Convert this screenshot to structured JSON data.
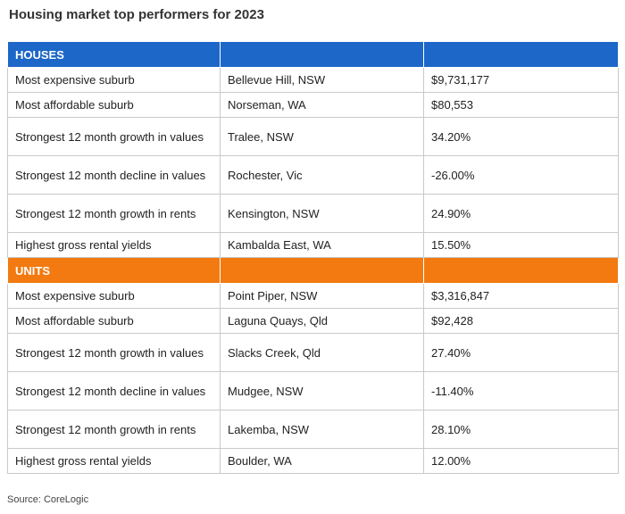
{
  "title": "Housing market top performers for 2023",
  "colors": {
    "houses_header": "#1c67c8",
    "units_header": "#f27a10"
  },
  "houses": {
    "label": "HOUSES",
    "rows": [
      {
        "metric": "Most expensive suburb",
        "suburb": "Bellevue Hill, NSW",
        "value": "$9,731,177"
      },
      {
        "metric": "Most affordable suburb",
        "suburb": "Norseman, WA",
        "value": "$80,553"
      },
      {
        "metric": "Strongest 12 month growth in values",
        "suburb": "Tralee, NSW",
        "value": "34.20%"
      },
      {
        "metric": "Strongest 12 month decline in values",
        "suburb": "Rochester, Vic",
        "value": "-26.00%"
      },
      {
        "metric": "Strongest 12 month growth in rents",
        "suburb": "Kensington, NSW",
        "value": "24.90%"
      },
      {
        "metric": "Highest gross rental yields",
        "suburb": "Kambalda East, WA",
        "value": "15.50%"
      }
    ]
  },
  "units": {
    "label": "UNITS",
    "rows": [
      {
        "metric": "Most expensive suburb",
        "suburb": "Point Piper, NSW",
        "value": "$3,316,847"
      },
      {
        "metric": "Most affordable suburb",
        "suburb": "Laguna Quays, Qld",
        "value": "$92,428"
      },
      {
        "metric": "Strongest 12 month growth in values",
        "suburb": "Slacks Creek, Qld",
        "value": "27.40%"
      },
      {
        "metric": "Strongest 12 month decline in values",
        "suburb": "Mudgee, NSW",
        "value": "-11.40%"
      },
      {
        "metric": "Strongest 12 month growth in rents",
        "suburb": "Lakemba, NSW",
        "value": "28.10%"
      },
      {
        "metric": "Highest gross rental yields",
        "suburb": "Boulder, WA",
        "value": "12.00%"
      }
    ]
  },
  "source": "Source: CoreLogic"
}
